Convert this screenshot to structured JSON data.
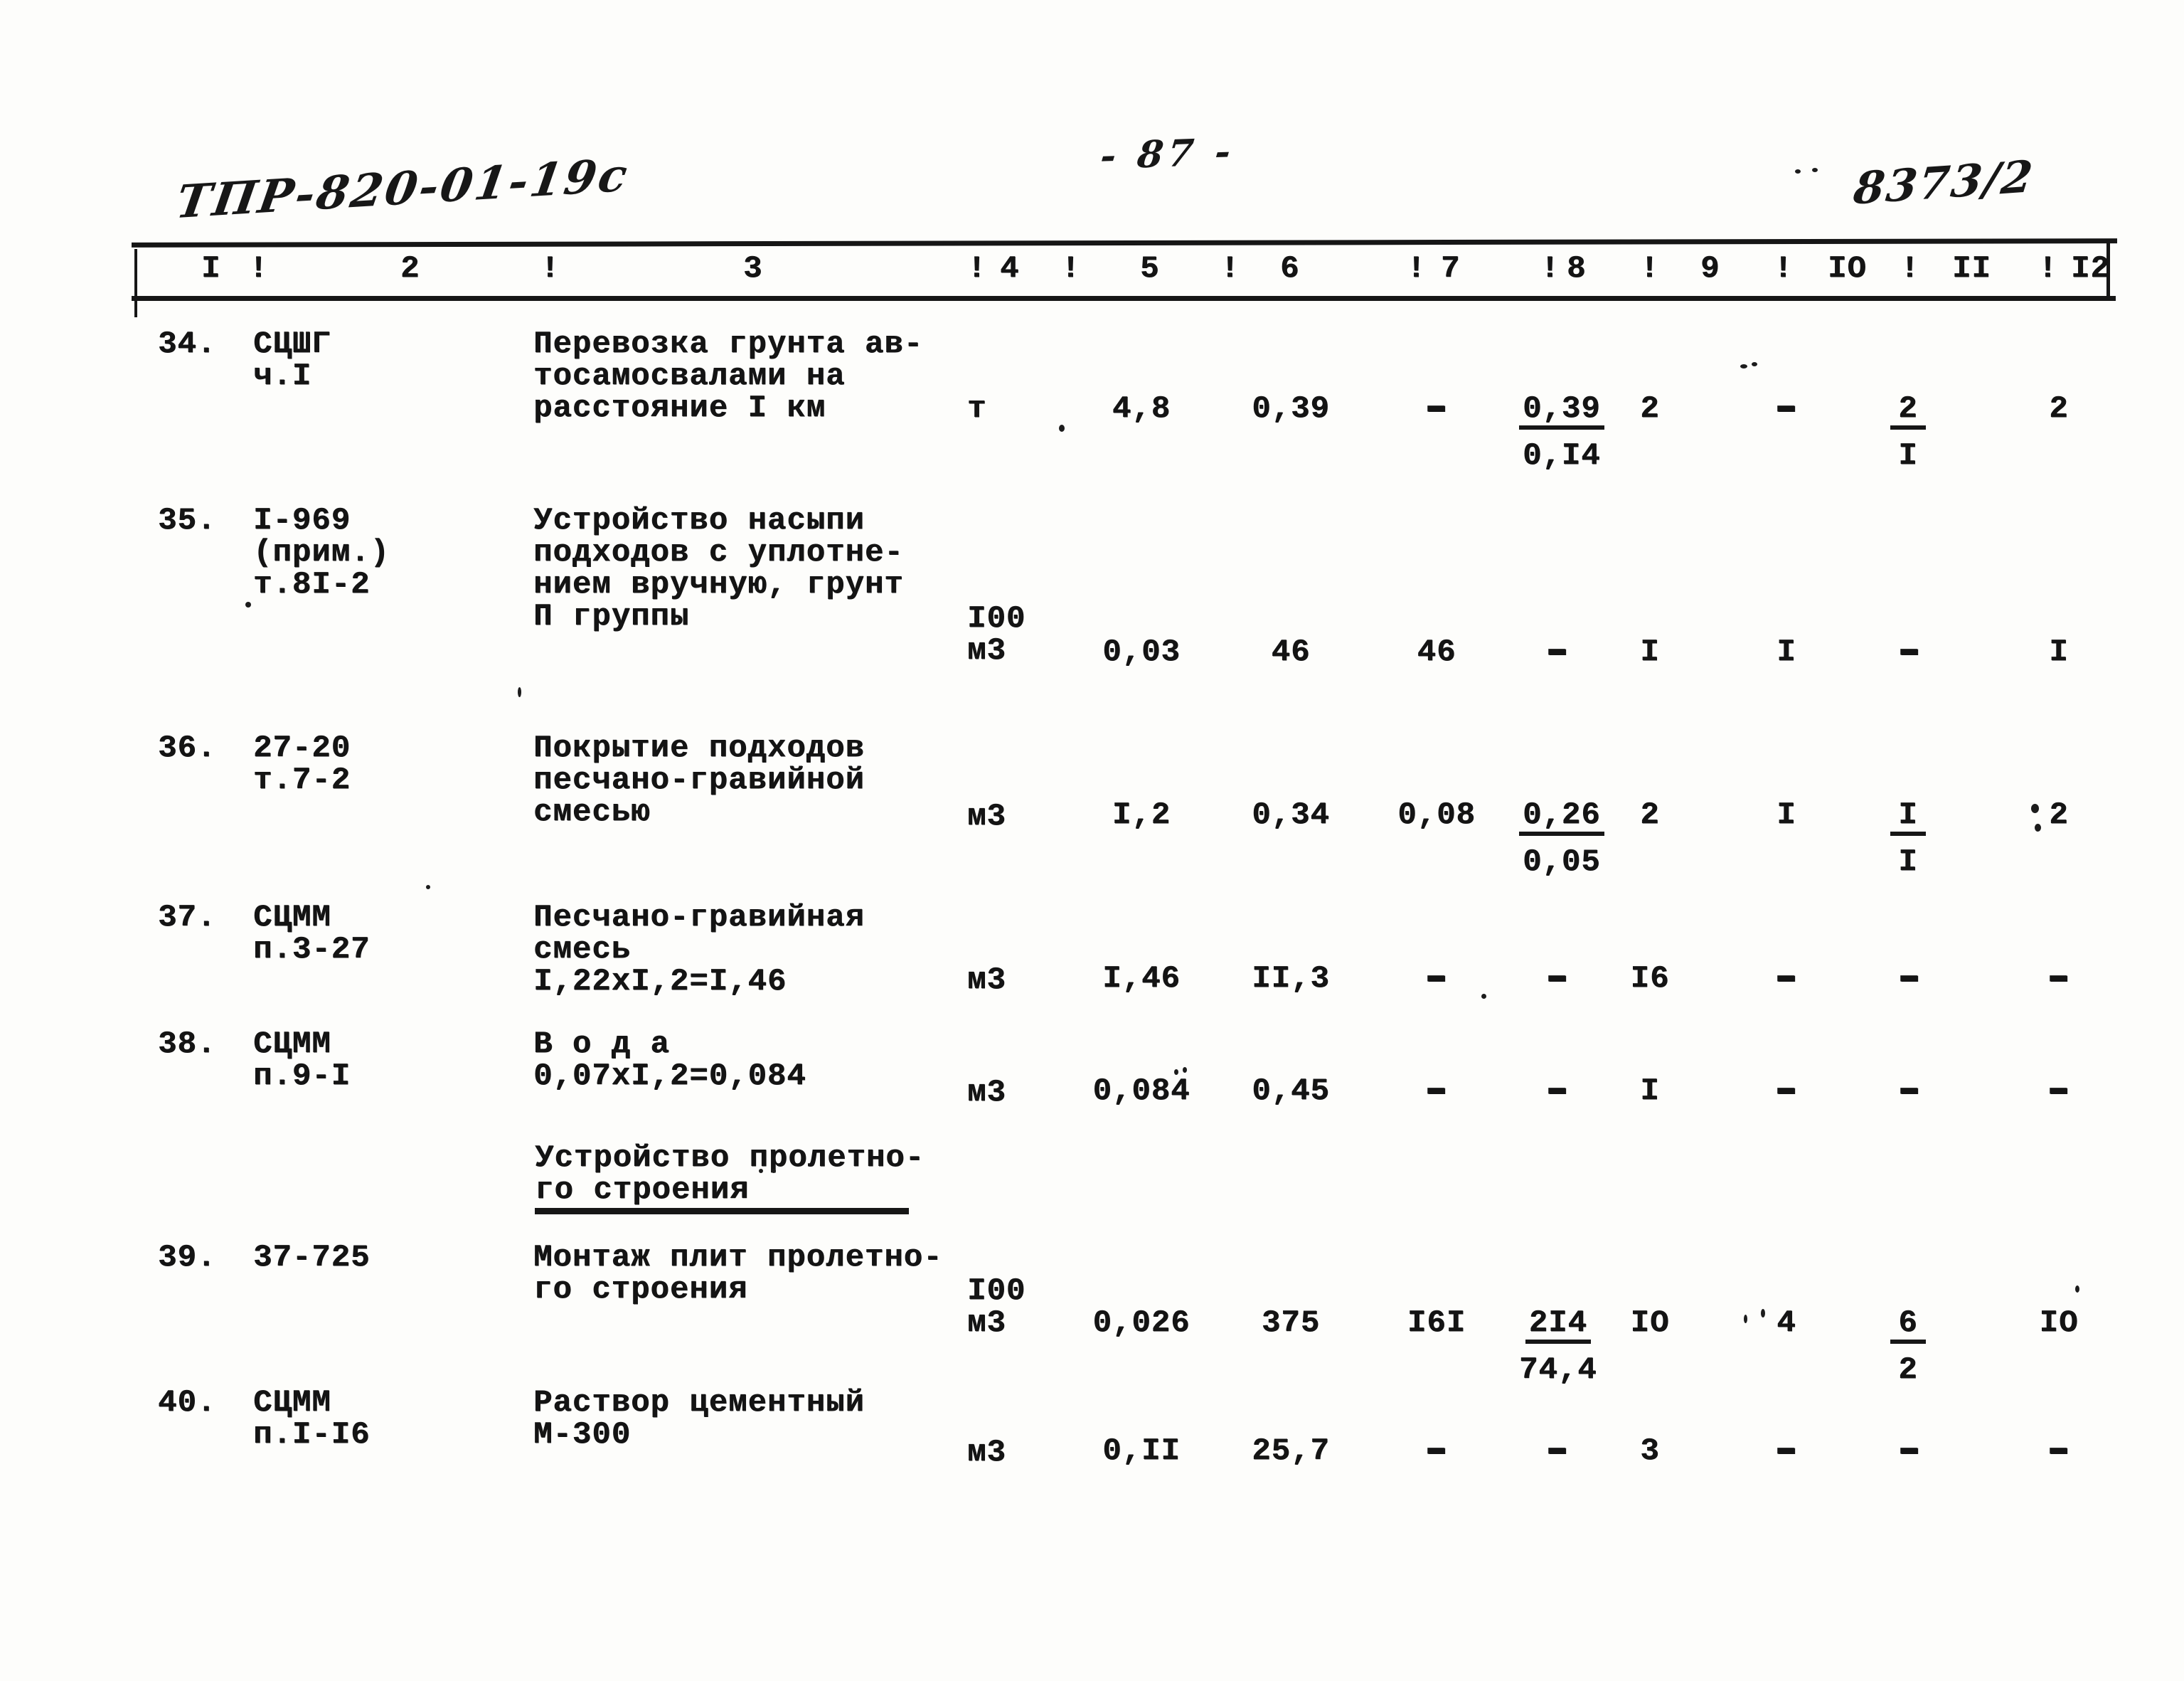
{
  "page": {
    "paper_color": "#fdfdfb",
    "ink_color": "#141414",
    "doc_number": "ТПР-820-01-19с",
    "page_number": "- 87 -",
    "sheet_number": "8373/2"
  },
  "table": {
    "header_cells": [
      "I",
      "!",
      "2",
      "!",
      "3",
      "!",
      "4",
      "!",
      "5",
      "!",
      "6",
      "!",
      "7",
      "!",
      "8",
      "!",
      "9",
      "!",
      "IO",
      "!",
      "II",
      "!",
      "I2"
    ],
    "section_heading": [
      "Устройство пролетно-",
      "го строения"
    ],
    "rows": [
      {
        "num": "34.",
        "code": [
          "СЦШГ",
          "ч.I"
        ],
        "desc": [
          "Перевозка грунта ав-",
          "тосамосвалами на",
          "расстояние I км"
        ],
        "unit": [
          "т"
        ],
        "values": {
          "c5": "4,8",
          "c6": "0,39",
          "c7": "-",
          "c8": {
            "top": "0,39",
            "bottom": "0,I4"
          },
          "c9": "2",
          "c10": "-",
          "c11": {
            "top": "2",
            "bottom": "I"
          },
          "c12": "2"
        }
      },
      {
        "num": "35.",
        "code": [
          "I-969",
          "(прим.)",
          "т.8I-2"
        ],
        "desc": [
          "Устройство насыпи",
          "подходов с уплотне-",
          "нием вручную, грунт",
          "П группы"
        ],
        "unit": [
          "I00",
          "м3"
        ],
        "values": {
          "c5": "0,03",
          "c6": "46",
          "c7": "46",
          "c8": "-",
          "c9": "I",
          "c10": "I",
          "c11": "-",
          "c12": "I"
        }
      },
      {
        "num": "36.",
        "code": [
          "27-20",
          "т.7-2"
        ],
        "desc": [
          "Покрытие подходов",
          "песчано-гравийной",
          "смесью"
        ],
        "unit": [
          "м3"
        ],
        "values": {
          "c5": "I,2",
          "c6": "0,34",
          "c7": "0,08",
          "c8": {
            "top": "0,26",
            "bottom": "0,05"
          },
          "c9": "2",
          "c10": "I",
          "c11": {
            "top": "I",
            "bottom": "I"
          },
          "c12": "2"
        }
      },
      {
        "num": "37.",
        "code": [
          "СЦММ",
          "п.3-27"
        ],
        "desc": [
          "Песчано-гравийная",
          "смесь",
          "I,22хI,2=I,46"
        ],
        "unit": [
          "м3"
        ],
        "values": {
          "c5": "I,46",
          "c6": "II,3",
          "c7": "-",
          "c8": "-",
          "c9": "I6",
          "c10": "-",
          "c11": "-",
          "c12": "-"
        }
      },
      {
        "num": "38.",
        "code": [
          "СЦММ",
          "п.9-I"
        ],
        "desc": [
          "В о д а",
          "0,07хI,2=0,084"
        ],
        "unit": [
          "м3"
        ],
        "values": {
          "c5": "0,084",
          "c6": "0,45",
          "c7": "-",
          "c8": "-",
          "c9": "I",
          "c10": "-",
          "c11": "-",
          "c12": "-"
        }
      },
      {
        "num": "39.",
        "code": [
          "37-725"
        ],
        "desc": [
          "Монтаж плит пролетно-",
          "го строения"
        ],
        "unit": [
          "I00",
          "м3"
        ],
        "values": {
          "c5": "0,026",
          "c6": "375",
          "c7": "I6I",
          "c8": {
            "top": "2I4",
            "bottom": "74,4"
          },
          "c9": "IO",
          "c10": "4",
          "c11": {
            "top": "6",
            "bottom": "2"
          },
          "c12": "IO"
        }
      },
      {
        "num": "40.",
        "code": [
          "СЦММ",
          "п.I-I6"
        ],
        "desc": [
          "Раствор цементный",
          "М-300"
        ],
        "unit": [
          "м3"
        ],
        "values": {
          "c5": "0,II",
          "c6": "25,7",
          "c7": "-",
          "c8": "-",
          "c9": "3",
          "c10": "-",
          "c11": "-",
          "c12": "-"
        }
      }
    ]
  }
}
